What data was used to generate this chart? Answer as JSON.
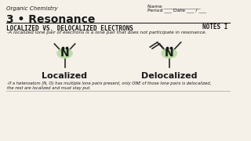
{
  "bg_color": "#f5f0e8",
  "title_top_left": "Organic Chemistry",
  "name_label": "Name _______________",
  "period_label": "Period ___ Date ___ / ___",
  "section_title": "3 • Resonance",
  "notes_label": "NOTES I",
  "section_heading": "LOCALIZED VS. DELOCALIZED ELECTRONS",
  "bullet1": "-A localized lone pair of electrons is a lone pair that does not participate in resonance.",
  "label_localized": "Localized",
  "label_delocalized": "Delocalized",
  "bullet2": "-If a heteroatom (N, O) has multiple lone pairs present, only ONE of those lone pairs is delocalized,\nthe rest are localized and must stay put.",
  "highlight_color": "#b5d9a0",
  "line_color": "#2a2a2a",
  "text_color": "#1a1a1a",
  "heading_color": "#111111"
}
